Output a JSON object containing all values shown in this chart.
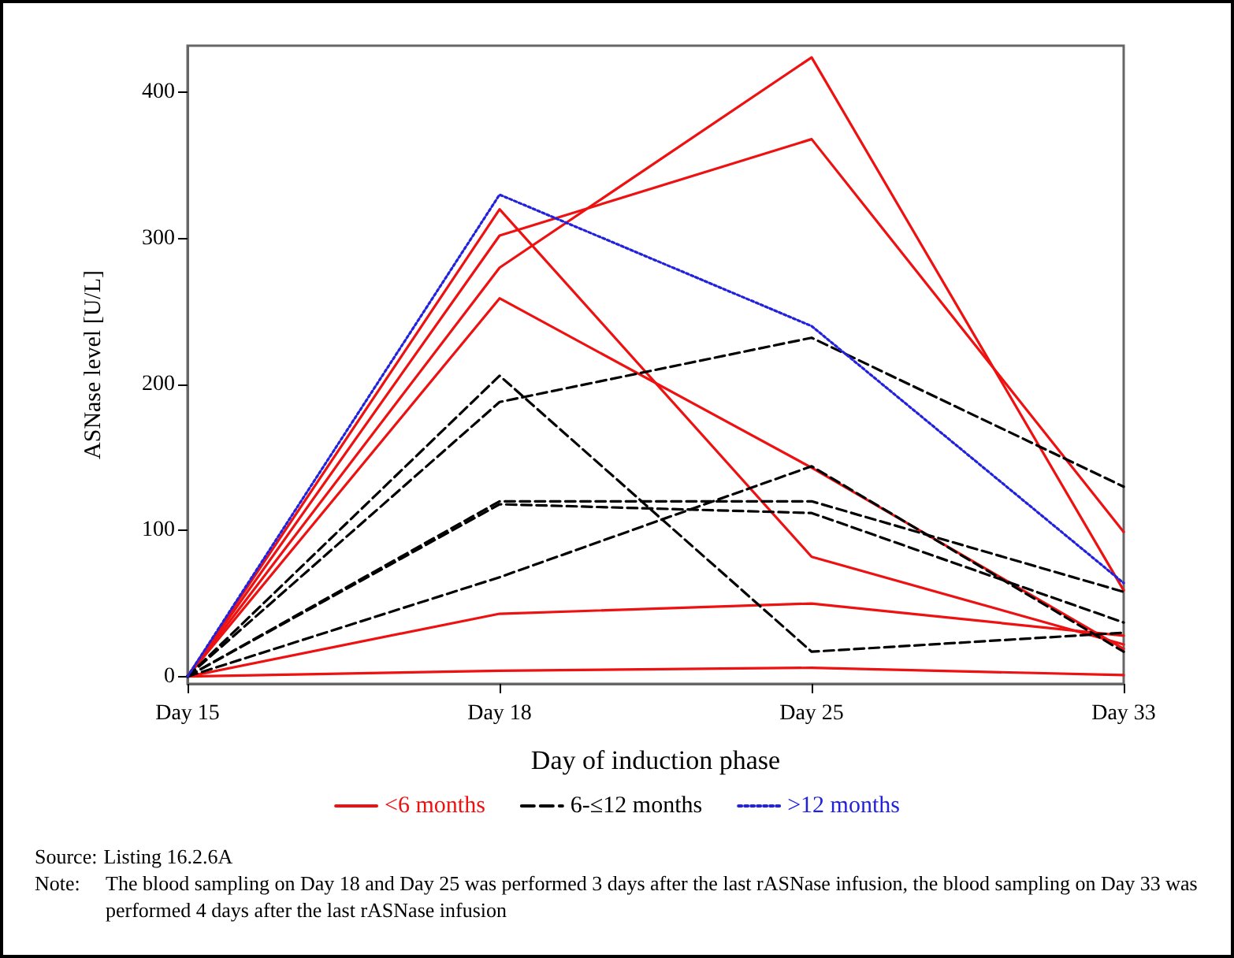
{
  "chart_data": {
    "type": "line",
    "xlabel": "Day of induction phase",
    "ylabel": "ASNase level [U/L]",
    "categories": [
      "Day 15",
      "Day 18",
      "Day 25",
      "Day 33"
    ],
    "ylim": [
      -5,
      432
    ],
    "yticks": [
      0,
      100,
      200,
      300,
      400
    ],
    "grid": false,
    "legend": "bottom",
    "marker": "none",
    "series": [
      {
        "name": "<6 months",
        "color": "#ee1111",
        "line_style": "solid",
        "values": [
          0,
          280,
          424,
          59
        ]
      },
      {
        "color": "#ee1111",
        "line_style": "solid",
        "values": [
          0,
          302,
          368,
          99
        ]
      },
      {
        "color": "#ee1111",
        "line_style": "solid",
        "values": [
          0,
          320,
          82,
          22
        ]
      },
      {
        "color": "#ee1111",
        "line_style": "solid",
        "values": [
          0,
          259,
          143,
          19
        ]
      },
      {
        "color": "#ee1111",
        "line_style": "solid",
        "values": [
          0,
          43,
          50,
          28
        ]
      },
      {
        "color": "#ee1111",
        "line_style": "solid",
        "values": [
          0,
          4,
          6,
          1
        ]
      },
      {
        "name": "6-≤12 months",
        "color": "#000000",
        "line_style": "dashed",
        "values": [
          0,
          206,
          17,
          30
        ]
      },
      {
        "color": "#000000",
        "line_style": "dashed",
        "values": [
          0,
          188,
          232,
          130
        ]
      },
      {
        "color": "#000000",
        "line_style": "dashed",
        "values": [
          0,
          120,
          120,
          58
        ]
      },
      {
        "color": "#000000",
        "line_style": "dashed",
        "values": [
          0,
          118,
          112,
          37
        ]
      },
      {
        "color": "#000000",
        "line_style": "dashed",
        "values": [
          0,
          68,
          144,
          17
        ]
      },
      {
        "name": ">12 months",
        "color": "#2222dd",
        "line_style": "dotted",
        "values": [
          0,
          330,
          240,
          64
        ]
      }
    ],
    "annotations": [
      "Source: Listing 16.2.6A",
      "Note: The blood sampling on Day 18 and Day 25 was performed 3 days after the last rASNase infusion, the blood sampling on Day 33 was performed 4 days after the last rASNase infusion"
    ]
  }
}
